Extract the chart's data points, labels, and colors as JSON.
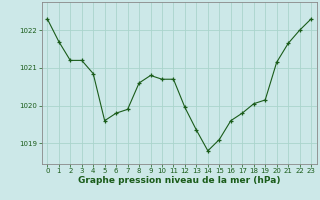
{
  "x": [
    0,
    1,
    2,
    3,
    4,
    5,
    6,
    7,
    8,
    9,
    10,
    11,
    12,
    13,
    14,
    15,
    16,
    17,
    18,
    19,
    20,
    21,
    22,
    23
  ],
  "y": [
    1022.3,
    1021.7,
    1021.2,
    1021.2,
    1020.85,
    1019.6,
    1019.8,
    1019.9,
    1020.6,
    1020.8,
    1020.7,
    1020.7,
    1019.95,
    1019.35,
    1018.8,
    1019.1,
    1019.6,
    1019.8,
    1020.05,
    1020.15,
    1021.15,
    1021.65,
    1022.0,
    1022.3
  ],
  "background_color": "#cce8e8",
  "grid_color": "#aad4cc",
  "line_color": "#1a5c1a",
  "marker_color": "#1a5c1a",
  "xlabel": "Graphe pression niveau de la mer (hPa)",
  "xlabel_fontsize": 6.5,
  "yticks": [
    1019,
    1020,
    1021,
    1022
  ],
  "xticks": [
    0,
    1,
    2,
    3,
    4,
    5,
    6,
    7,
    8,
    9,
    10,
    11,
    12,
    13,
    14,
    15,
    16,
    17,
    18,
    19,
    20,
    21,
    22,
    23
  ],
  "ylim": [
    1018.45,
    1022.75
  ],
  "xlim": [
    -0.5,
    23.5
  ],
  "tick_fontsize": 5.0,
  "border_color": "#1a5c1a",
  "spine_color": "#888888"
}
